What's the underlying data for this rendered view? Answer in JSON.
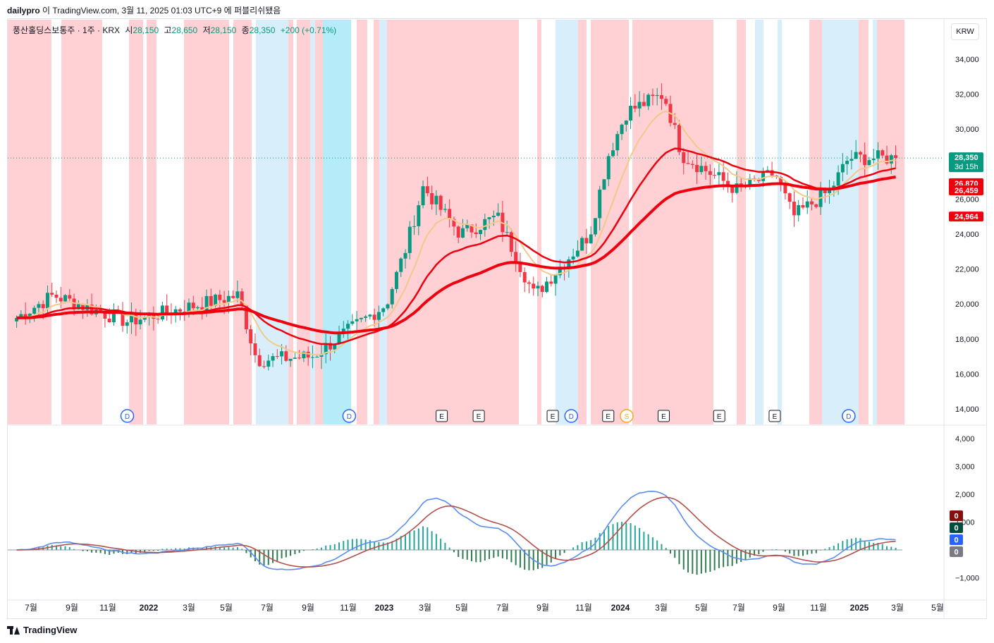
{
  "header": {
    "author": "dailypro",
    "text": " 이 TradingView.com, 3월 11, 2025 01:03 UTC+9 에 퍼블리쉬됐음"
  },
  "legend": {
    "symbol": "풍산홀딩스보통주 · 1주 · KRX",
    "open_label": "시",
    "open": "28,150",
    "high_label": "고",
    "high": "28,650",
    "low_label": "저",
    "low": "28,150",
    "close_label": "종",
    "close": "28,350",
    "change": "+200 (+0.71%)"
  },
  "currency": "KRW",
  "colors": {
    "up": "#089981",
    "down": "#f23645",
    "bg_red": "#ffcdd2",
    "bg_lightblue": "#d6eefb",
    "bg_cyan": "#b2ebf9",
    "ma_red": "#f0000f",
    "ma_tan": "#f0c98b",
    "macd": "#5b8def",
    "signal": "#b2504b"
  },
  "footer": {
    "brand": "TradingView"
  },
  "chart_data": [
    {
      "type": "candlestick",
      "period": "1주",
      "y_ticks": [
        "34,000",
        "32,000",
        "30,000",
        "28,000",
        "26,000",
        "24,000",
        "22,000",
        "20,000",
        "18,000",
        "16,000",
        "14,000"
      ],
      "ylim": [
        13000,
        35000
      ],
      "x_labels": [
        "7월",
        "9월",
        "11월",
        "2022",
        "3월",
        "5월",
        "7월",
        "9월",
        "11월",
        "2023",
        "3월",
        "5월",
        "7월",
        "9월",
        "11월",
        "2024",
        "3월",
        "5월",
        "7월",
        "9월",
        "11월",
        "2025",
        "3월",
        "5월"
      ],
      "key_points": [
        {
          "date": "2021-06",
          "price": 19200
        },
        {
          "date": "2021-08",
          "price": 20500
        },
        {
          "date": "2021-12",
          "price": 19000
        },
        {
          "date": "2022-06",
          "price": 20500
        },
        {
          "date": "2022-07",
          "price": 16800
        },
        {
          "date": "2022-10",
          "price": 17000
        },
        {
          "date": "2023-02",
          "price": 20000
        },
        {
          "date": "2023-03",
          "price": 23000
        },
        {
          "date": "2023-04",
          "price": 26700
        },
        {
          "date": "2023-06",
          "price": 24000
        },
        {
          "date": "2023-08",
          "price": 25000
        },
        {
          "date": "2023-10",
          "price": 20500
        },
        {
          "date": "2024-01",
          "price": 24000
        },
        {
          "date": "2024-02",
          "price": 28500
        },
        {
          "date": "2024-03",
          "price": 31000
        },
        {
          "date": "2024-05",
          "price": 32000
        },
        {
          "date": "2024-06",
          "price": 28500
        },
        {
          "date": "2024-09",
          "price": 26500
        },
        {
          "date": "2024-11",
          "price": 27500
        },
        {
          "date": "2024-12",
          "price": 25000
        },
        {
          "date": "2025-02",
          "price": 26500
        },
        {
          "date": "2025-03",
          "price": 28350
        }
      ],
      "price_labels": [
        {
          "text": "28,350",
          "sub": "3d 15h",
          "color": "#089981",
          "value": 28350
        },
        {
          "text": "26,870",
          "color": "#f0000f",
          "value": 26870
        },
        {
          "text": "26,459",
          "color": "#f0000f",
          "value": 26459
        },
        {
          "text": "24,964",
          "color": "#f0000f",
          "value": 24964
        }
      ],
      "event_markers": [
        {
          "label": "D",
          "date": "2021-12"
        },
        {
          "label": "D",
          "date": "2022-12"
        },
        {
          "label": "E",
          "date": "2023-05"
        },
        {
          "label": "E",
          "date": "2023-07"
        },
        {
          "label": "E",
          "date": "2023-11"
        },
        {
          "label": "D",
          "date": "2023-12"
        },
        {
          "label": "E",
          "date": "2024-02"
        },
        {
          "label": "S",
          "date": "2024-03"
        },
        {
          "label": "E",
          "date": "2024-05"
        },
        {
          "label": "E",
          "date": "2024-08"
        },
        {
          "label": "E",
          "date": "2024-11"
        },
        {
          "label": "D",
          "date": "2025-03"
        }
      ]
    },
    {
      "type": "macd",
      "y_ticks": [
        "4,000",
        "3,000",
        "2,000",
        "1,000",
        "0",
        "−1,000"
      ],
      "ylim": [
        -1600,
        4200
      ],
      "value_labels": [
        {
          "text": "0",
          "color": "#880e0e"
        },
        {
          "text": "0",
          "color": "#004d40"
        },
        {
          "text": "0",
          "color": "#2962ff"
        },
        {
          "text": "0",
          "color": "#787b86"
        }
      ]
    }
  ]
}
